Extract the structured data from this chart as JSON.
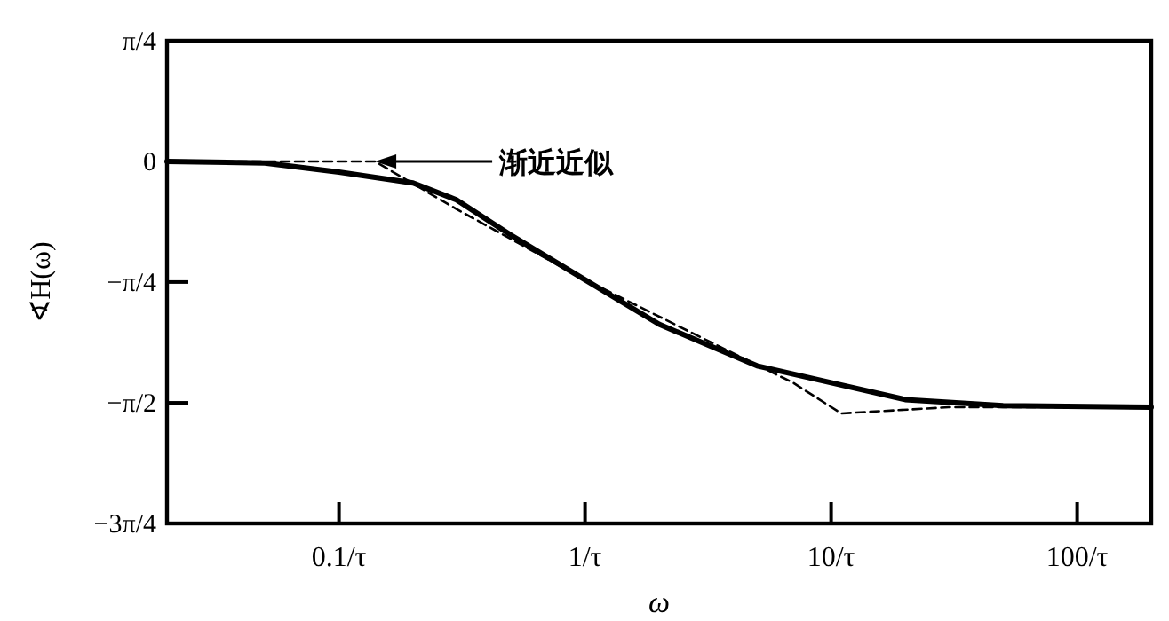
{
  "chart_data": {
    "type": "line",
    "xlabel": "ω",
    "ylabel": "∢H(ω)",
    "log": "x",
    "xlim": [
      0.02,
      200
    ],
    "xticks": [
      {
        "value": 0.1,
        "label": "0.1/τ"
      },
      {
        "value": 1,
        "label": "1/τ"
      },
      {
        "value": 10,
        "label": "10/τ"
      },
      {
        "value": 100,
        "label": "100/τ"
      }
    ],
    "ylim": [
      -2.356,
      0.785
    ],
    "yticks": [
      {
        "value": 0.785,
        "label": "π/4"
      },
      0,
      {
        "value": -0.785,
        "label": "−π/4"
      },
      {
        "value": -1.571,
        "label": "−π/2"
      },
      {
        "value": -2.356,
        "label": "−3π/4"
      }
    ],
    "grid": false,
    "series": [
      {
        "color": "#000000",
        "line_style": "solid",
        "x": [
          0.02,
          0.05,
          0.1,
          0.2,
          0.3,
          0.5,
          1,
          2,
          3,
          5,
          10,
          20,
          50,
          200
        ],
        "values": [
          0,
          -0.01,
          -0.07,
          -0.14,
          -0.25,
          -0.48,
          -0.77,
          -1.06,
          -1.18,
          -1.33,
          -1.44,
          -1.55,
          -1.59,
          -1.6
        ]
      },
      {
        "name": "渐近近似",
        "color": "#000000",
        "line_style": "dashed",
        "x": [
          0.02,
          0.14,
          0.3,
          1,
          3,
          7,
          11,
          30,
          200
        ],
        "values": [
          0,
          0,
          -0.31,
          -0.77,
          -1.15,
          -1.44,
          -1.64,
          -1.6,
          -1.6
        ]
      }
    ]
  }
}
